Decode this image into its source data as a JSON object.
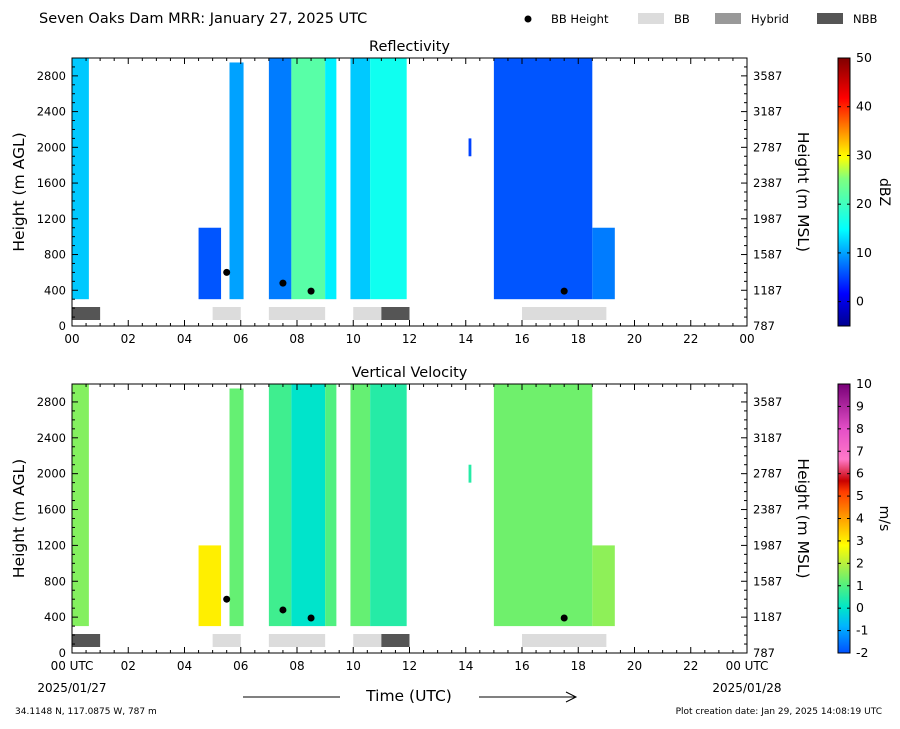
{
  "header": {
    "title": "Seven Oaks Dam MRR:  January 27, 2025 UTC",
    "legend": [
      {
        "label": "BB Height",
        "kind": "dot",
        "color": "#000000"
      },
      {
        "label": "BB",
        "kind": "swatch",
        "color": "#dcdcdc"
      },
      {
        "label": "Hybrid",
        "kind": "swatch",
        "color": "#999999"
      },
      {
        "label": "NBB",
        "kind": "swatch",
        "color": "#555555"
      }
    ]
  },
  "footer": {
    "location": "34.1148 N, 117.0875 W, 787 m",
    "created": "Plot creation date: Jan 29, 2025 14:08:19 UTC",
    "xlabel": "Time (UTC)",
    "date_start": "2025/01/27",
    "date_end": "2025/01/28"
  },
  "colors": {
    "bb": "#dcdcdc",
    "hybrid": "#999999",
    "nbb": "#555555"
  },
  "chart_data": [
    {
      "type": "heatmap",
      "title": "Reflectivity",
      "ylabel": "Height (m AGL)",
      "y2label": "Height (m MSL)",
      "units": "dBZ",
      "xlim": [
        0,
        24
      ],
      "ylim": [
        0,
        3000
      ],
      "xticks": [
        "00",
        "02",
        "04",
        "06",
        "08",
        "10",
        "12",
        "14",
        "16",
        "18",
        "20",
        "22",
        "00"
      ],
      "yticks": [
        0,
        400,
        800,
        1200,
        1600,
        2000,
        2400,
        2800
      ],
      "y2ticks": [
        "787",
        "1187",
        "1587",
        "1987",
        "2387",
        "2787",
        "3187",
        "3587"
      ],
      "colorbar": {
        "min": -5,
        "max": 50,
        "ticks": [
          0,
          10,
          20,
          30,
          40,
          50
        ]
      },
      "colormap": "jet",
      "echo_segments": [
        {
          "start": 0.0,
          "end": 0.6,
          "top": 3000,
          "bottom": 300,
          "value": 12
        },
        {
          "start": 4.5,
          "end": 5.3,
          "top": 1100,
          "bottom": 300,
          "value": 6
        },
        {
          "start": 5.6,
          "end": 6.1,
          "top": 2950,
          "bottom": 300,
          "value": 10
        },
        {
          "start": 7.0,
          "end": 7.8,
          "top": 3000,
          "bottom": 300,
          "value": 8
        },
        {
          "start": 7.8,
          "end": 9.0,
          "top": 3000,
          "bottom": 300,
          "value": 22
        },
        {
          "start": 9.0,
          "end": 9.4,
          "top": 3000,
          "bottom": 300,
          "value": 14
        },
        {
          "start": 9.9,
          "end": 10.6,
          "top": 3000,
          "bottom": 300,
          "value": 12
        },
        {
          "start": 10.6,
          "end": 11.9,
          "top": 3000,
          "bottom": 300,
          "value": 16
        },
        {
          "start": 14.1,
          "end": 14.2,
          "top": 2100,
          "bottom": 1900,
          "value": 5
        },
        {
          "start": 15.0,
          "end": 18.5,
          "top": 3000,
          "bottom": 300,
          "value": 6
        },
        {
          "start": 18.5,
          "end": 19.3,
          "top": 1100,
          "bottom": 300,
          "value": 8
        }
      ],
      "bb_height": [
        {
          "x": 5.5,
          "y": 600
        },
        {
          "x": 7.5,
          "y": 480
        },
        {
          "x": 8.5,
          "y": 390
        },
        {
          "x": 17.5,
          "y": 390
        }
      ],
      "bb_type": [
        {
          "start": 0.0,
          "end": 1.0,
          "type": "NBB"
        },
        {
          "start": 5.0,
          "end": 6.0,
          "type": "BB"
        },
        {
          "start": 7.0,
          "end": 9.0,
          "type": "BB"
        },
        {
          "start": 10.0,
          "end": 11.0,
          "type": "BB"
        },
        {
          "start": 11.0,
          "end": 12.0,
          "type": "NBB"
        },
        {
          "start": 16.0,
          "end": 19.0,
          "type": "BB"
        }
      ]
    },
    {
      "type": "heatmap",
      "title": "Vertical Velocity",
      "ylabel": "Height (m AGL)",
      "y2label": "Height (m MSL)",
      "units": "m/s",
      "xlim": [
        0,
        24
      ],
      "ylim": [
        0,
        3000
      ],
      "xticks": [
        "00 UTC",
        "02",
        "04",
        "06",
        "08",
        "10",
        "12",
        "14",
        "16",
        "18",
        "20",
        "22",
        "00 UTC"
      ],
      "yticks": [
        0,
        400,
        800,
        1200,
        1600,
        2000,
        2400,
        2800
      ],
      "y2ticks": [
        "787",
        "1187",
        "1587",
        "1987",
        "2387",
        "2787",
        "3187",
        "3587"
      ],
      "colorbar": {
        "min": -2,
        "max": 10,
        "ticks": [
          -2,
          -1,
          0,
          1,
          2,
          3,
          4,
          5,
          6,
          7,
          8,
          9,
          10
        ]
      },
      "colormap": "velocity",
      "echo_segments": [
        {
          "start": 0.0,
          "end": 0.6,
          "top": 3000,
          "bottom": 300,
          "value": 1.5
        },
        {
          "start": 4.5,
          "end": 5.3,
          "top": 1200,
          "bottom": 300,
          "value": 3.0
        },
        {
          "start": 5.6,
          "end": 6.1,
          "top": 2950,
          "bottom": 300,
          "value": 1.2
        },
        {
          "start": 7.0,
          "end": 7.8,
          "top": 3000,
          "bottom": 300,
          "value": 0.8
        },
        {
          "start": 7.8,
          "end": 9.0,
          "top": 3000,
          "bottom": 300,
          "value": 0.0
        },
        {
          "start": 9.0,
          "end": 9.4,
          "top": 3000,
          "bottom": 300,
          "value": 1.0
        },
        {
          "start": 9.9,
          "end": 10.6,
          "top": 3000,
          "bottom": 300,
          "value": 1.2
        },
        {
          "start": 10.6,
          "end": 11.9,
          "top": 3000,
          "bottom": 300,
          "value": 0.5
        },
        {
          "start": 14.1,
          "end": 14.2,
          "top": 2100,
          "bottom": 1900,
          "value": 0.5
        },
        {
          "start": 15.0,
          "end": 18.5,
          "top": 3000,
          "bottom": 300,
          "value": 1.3
        },
        {
          "start": 18.5,
          "end": 19.3,
          "top": 1200,
          "bottom": 300,
          "value": 1.6
        }
      ],
      "bb_height": [
        {
          "x": 5.5,
          "y": 600
        },
        {
          "x": 7.5,
          "y": 480
        },
        {
          "x": 8.5,
          "y": 390
        },
        {
          "x": 17.5,
          "y": 390
        }
      ],
      "bb_type": [
        {
          "start": 0.0,
          "end": 1.0,
          "type": "NBB"
        },
        {
          "start": 5.0,
          "end": 6.0,
          "type": "BB"
        },
        {
          "start": 7.0,
          "end": 9.0,
          "type": "BB"
        },
        {
          "start": 10.0,
          "end": 11.0,
          "type": "BB"
        },
        {
          "start": 11.0,
          "end": 12.0,
          "type": "NBB"
        },
        {
          "start": 16.0,
          "end": 19.0,
          "type": "BB"
        }
      ]
    }
  ]
}
